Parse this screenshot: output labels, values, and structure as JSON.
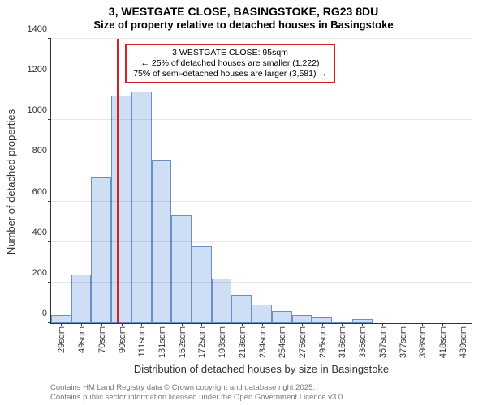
{
  "chart": {
    "type": "histogram",
    "title_line1": "3, WESTGATE CLOSE, BASINGSTOKE, RG23 8DU",
    "title_line2": "Size of property relative to detached houses in Basingstoke",
    "ylabel": "Number of detached properties",
    "xlabel": "Distribution of detached houses by size in Basingstoke",
    "background_color": "#ffffff",
    "bar_fill": "#cedff5",
    "bar_stroke": "#6a8fc5",
    "marker_color": "#d61f1f",
    "text_color": "#333333",
    "grid_color": "#333333",
    "ylim_max": 1400,
    "ytick_step": 200,
    "ytick_labels": [
      "0",
      "200",
      "400",
      "600",
      "800",
      "1000",
      "1200",
      "1400"
    ],
    "categories": [
      "29sqm",
      "49sqm",
      "70sqm",
      "90sqm",
      "111sqm",
      "131sqm",
      "152sqm",
      "172sqm",
      "193sqm",
      "213sqm",
      "234sqm",
      "254sqm",
      "275sqm",
      "295sqm",
      "316sqm",
      "336sqm",
      "357sqm",
      "377sqm",
      "398sqm",
      "418sqm",
      "439sqm"
    ],
    "values": [
      40,
      240,
      720,
      1120,
      1140,
      800,
      530,
      380,
      220,
      140,
      90,
      60,
      40,
      30,
      10,
      20,
      0,
      0,
      0,
      0,
      0
    ],
    "marker_category_index": 3,
    "marker_offset_in_bar": 0.27,
    "annotation": {
      "line1": "3 WESTGATE CLOSE: 95sqm",
      "line2": "← 25% of detached houses are smaller (1,222)",
      "line3": "75% of semi-detached houses are larger (3,581) →",
      "border_color": "#d61f1f"
    }
  },
  "footer": {
    "line1": "Contains HM Land Registry data © Crown copyright and database right 2025.",
    "line2": "Contains public sector information licensed under the Open Government Licence v3.0."
  }
}
